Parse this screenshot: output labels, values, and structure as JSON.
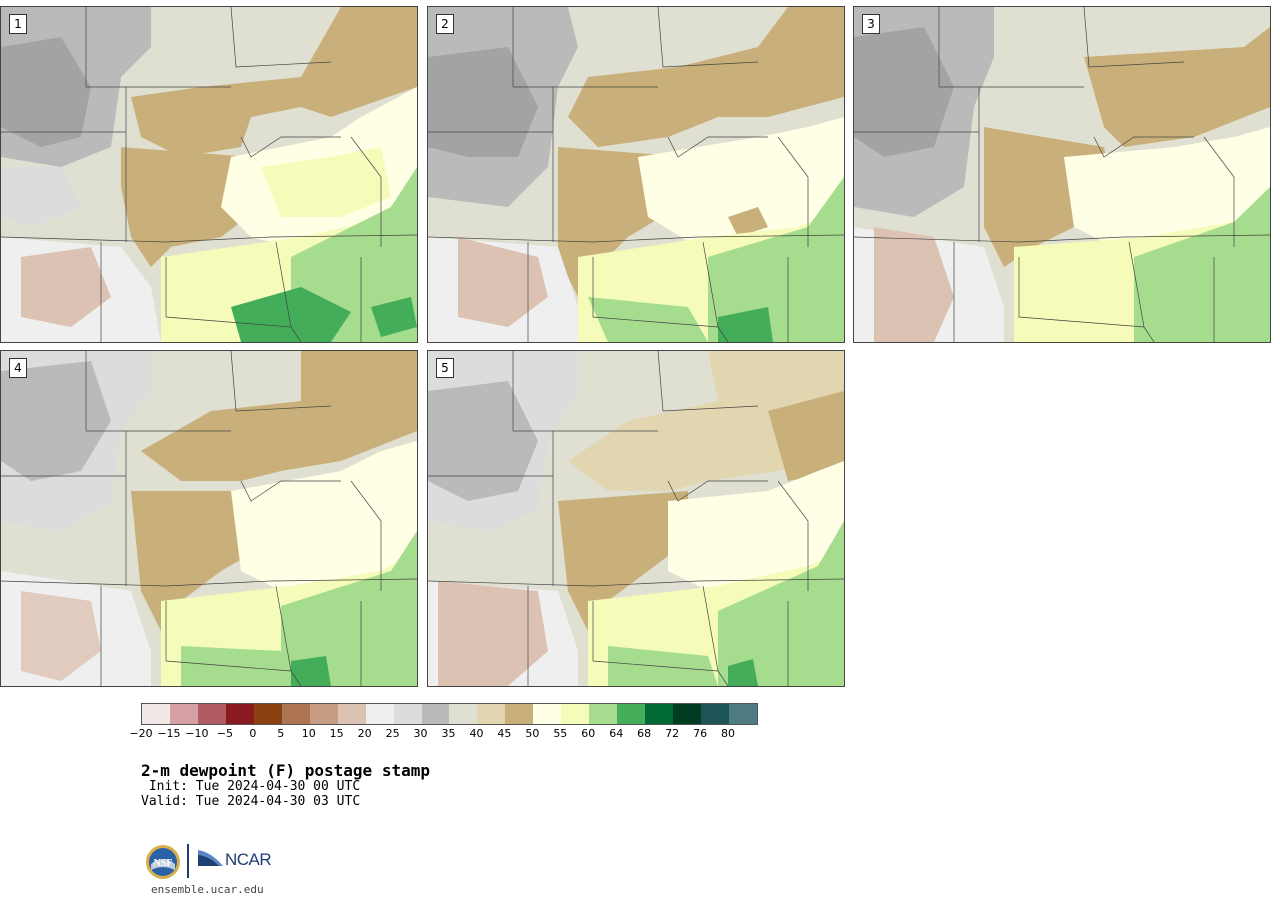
{
  "panels": [
    {
      "label": "1"
    },
    {
      "label": "2"
    },
    {
      "label": "3"
    },
    {
      "label": "4"
    },
    {
      "label": "5"
    }
  ],
  "colorbar": {
    "colors": [
      "#f2e8e8",
      "#d4a0a4",
      "#b05c62",
      "#8a1a20",
      "#8a4210",
      "#ad7650",
      "#c69c82",
      "#dcc2b2",
      "#efefef",
      "#dcdcdc",
      "#bababa",
      "#dfdfd2",
      "#e2d6b0",
      "#c9b07a",
      "#ffffe6",
      "#f5fbb8",
      "#a6dc8e",
      "#44ad5a",
      "#006a36",
      "#003c22",
      "#1c5458",
      "#4e7c82"
    ],
    "ticks": [
      "−20",
      "−15",
      "−10",
      "−5",
      "0",
      "5",
      "10",
      "15",
      "20",
      "25",
      "30",
      "35",
      "40",
      "45",
      "50",
      "55",
      "60",
      "64",
      "68",
      "72",
      "76",
      "80"
    ]
  },
  "title": "2-m dewpoint (F) postage stamp",
  "init": " Init: Tue 2024-04-30 00 UTC",
  "valid": "Valid: Tue 2024-04-30 03 UTC",
  "logos": {
    "nsf": "NSF",
    "ncar": "NCAR"
  },
  "site": "ensemble.ucar.edu"
}
